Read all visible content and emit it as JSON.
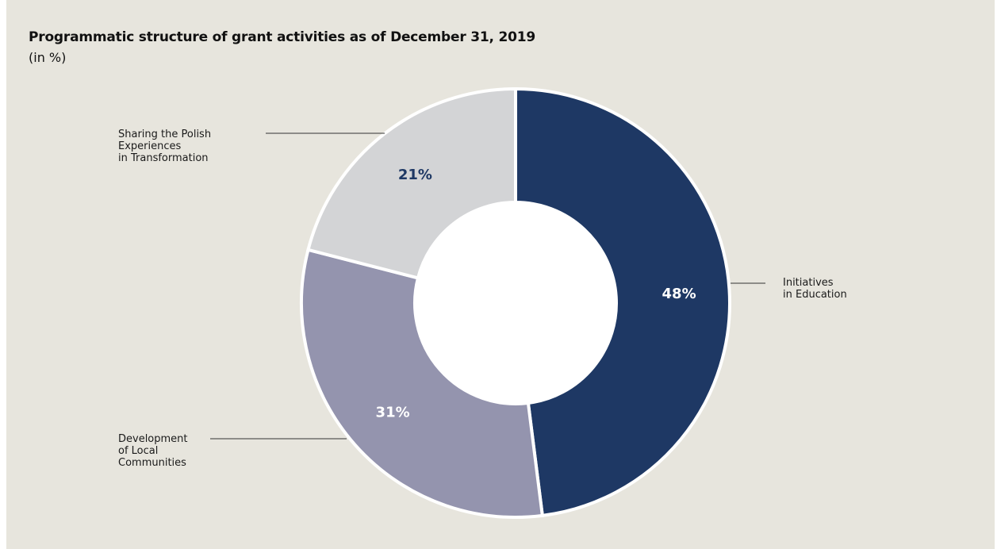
{
  "chart_data": {
    "type": "pie",
    "title": "Programmatic structure of grant activities as of December 31, 2019",
    "subtitle": "(in %)",
    "categories": [
      "Initiatives in Education",
      "Development of Local Communities",
      "Sharing the Polish Experiences in Transformation"
    ],
    "values": [
      48,
      31,
      21
    ],
    "value_labels": [
      "48%",
      "31%",
      "21%"
    ],
    "colors": [
      "#1e3864",
      "#9494ae",
      "#d3d4d6"
    ],
    "value_label_colors": [
      "#ffffff",
      "#ffffff",
      "#1e3864"
    ],
    "label_lines": [
      [
        "Initiatives",
        "in Education"
      ],
      [
        "Development",
        "of Local",
        "Communities"
      ],
      [
        "Sharing the Polish",
        "Experiences",
        "in Transformation"
      ]
    ],
    "style": "donut",
    "legend": "none"
  }
}
